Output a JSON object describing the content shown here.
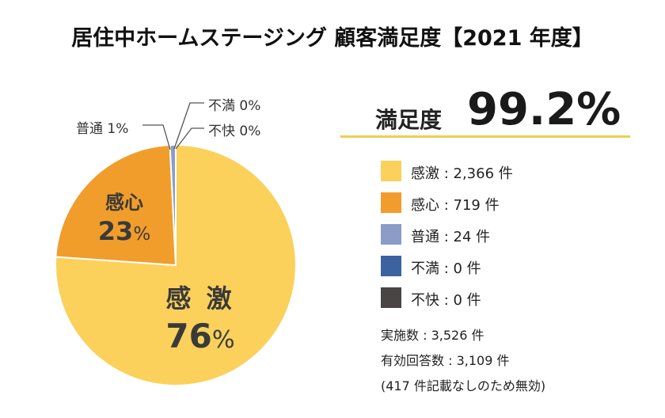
{
  "title": "居住中ホームステージング 顧客満足度【2021 年度】",
  "satisfaction": {
    "label": "満足度",
    "value": "99.2%"
  },
  "chart_data": {
    "type": "pie",
    "title": "居住中ホームステージング 顧客満足度【2021 年度】",
    "slices": [
      {
        "name": "感激",
        "count": 2366,
        "percent": 76,
        "color": "#fbd15b"
      },
      {
        "name": "感心",
        "count": 719,
        "percent": 23,
        "color": "#f19d2b"
      },
      {
        "name": "普通",
        "count": 24,
        "percent": 1,
        "color": "#8b9dc7"
      },
      {
        "name": "不満",
        "count": 0,
        "percent": 0,
        "color": "#3c63a0"
      },
      {
        "name": "不快",
        "count": 0,
        "percent": 0,
        "color": "#4a4545"
      }
    ]
  },
  "slice_labels": {
    "kangeki": {
      "name": "感 激",
      "pct": "76",
      "sign": "%"
    },
    "kanshin": {
      "name": "感心",
      "pct": "23",
      "sign": "%"
    }
  },
  "callouts": {
    "futsu": "普通 1%",
    "fuman": "不満 0%",
    "fukai": "不快 0%"
  },
  "legend": [
    {
      "text": "感激 : 2,366 件",
      "color": "#fbd15b"
    },
    {
      "text": "感心 : 719 件",
      "color": "#f19d2b"
    },
    {
      "text": "普通 : 24 件",
      "color": "#8b9dc7"
    },
    {
      "text": "不満 : 0 件",
      "color": "#3c63a0"
    },
    {
      "text": "不快 : 0 件",
      "color": "#4a4545"
    }
  ],
  "notes": [
    "実施数 : 3,526 件",
    "有効回答数 : 3,109 件",
    "(417 件記載なしのため無効)"
  ]
}
